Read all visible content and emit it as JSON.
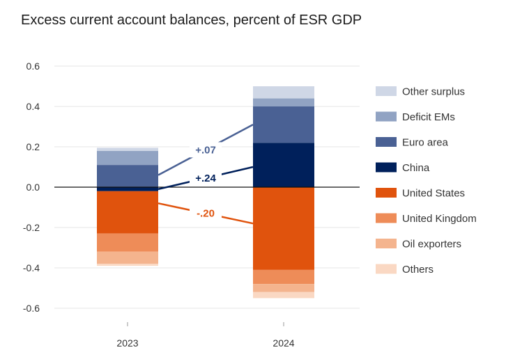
{
  "chart_data": {
    "type": "bar",
    "stacked": true,
    "title": "Excess current account balances, percent of ESR GDP",
    "xlabel": "",
    "ylabel": "",
    "categories": [
      "2023",
      "2024"
    ],
    "ylim": [
      -0.62,
      0.62
    ],
    "yticks": [
      {
        "value": 0.6,
        "label": "0.6"
      },
      {
        "value": 0.4,
        "label": "0.4"
      },
      {
        "value": 0.2,
        "label": "0.2"
      },
      {
        "value": 0.0,
        "label": "0.0"
      },
      {
        "value": -0.2,
        "label": "-0.2"
      },
      {
        "value": -0.4,
        "label": "-0.4"
      },
      {
        "value": -0.6,
        "label": "-0.6"
      }
    ],
    "grid": true,
    "legend_position": "right",
    "series": [
      {
        "name": "China",
        "color": "#00205b",
        "values": [
          -0.02,
          0.22
        ]
      },
      {
        "name": "Euro area",
        "color": "#4a6194",
        "values": [
          0.11,
          0.18
        ]
      },
      {
        "name": "Deficit EMs",
        "color": "#91a3c3",
        "values": [
          0.07,
          0.04
        ]
      },
      {
        "name": "Other surplus",
        "color": "#cfd7e6",
        "values": [
          0.015,
          0.06
        ]
      },
      {
        "name": "United States",
        "color": "#e0530d",
        "values": [
          -0.21,
          -0.41
        ]
      },
      {
        "name": "United Kingdom",
        "color": "#ee8c58",
        "values": [
          -0.09,
          -0.07
        ]
      },
      {
        "name": "Oil exporters",
        "color": "#f4b48e",
        "values": [
          -0.06,
          -0.04
        ]
      },
      {
        "name": "Others",
        "color": "#fad8c3",
        "values": [
          -0.01,
          -0.03
        ]
      }
    ],
    "legend_order": [
      "Other surplus",
      "Deficit EMs",
      "Euro area",
      "China",
      "United States",
      "United Kingdom",
      "Oil exporters",
      "Others"
    ],
    "annotations": [
      {
        "text": "+.07",
        "color": "#4a6194",
        "from": {
          "category": "2023",
          "value": 0.06
        },
        "to": {
          "category": "2024",
          "value": 0.31
        }
      },
      {
        "text": "+.24",
        "color": "#00205b",
        "from": {
          "category": "2023",
          "value": -0.01
        },
        "to": {
          "category": "2024",
          "value": 0.1
        }
      },
      {
        "text": "-.20",
        "color": "#e0530d",
        "from": {
          "category": "2023",
          "value": -0.08
        },
        "to": {
          "category": "2024",
          "value": -0.18
        }
      }
    ]
  }
}
